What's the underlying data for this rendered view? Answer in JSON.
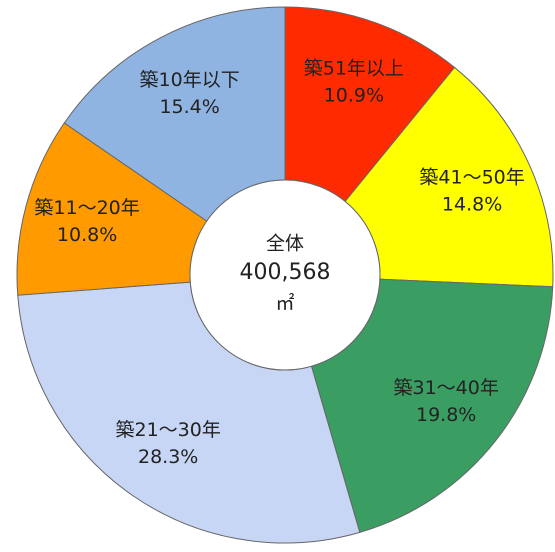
{
  "chart_data": {
    "type": "donut",
    "categories": [
      "築51年以上",
      "築41～50年",
      "築31～40年",
      "築21～30年",
      "築11～20年",
      "築10年以下"
    ],
    "values": [
      10.9,
      14.8,
      19.8,
      28.3,
      10.8,
      15.4
    ],
    "value_labels": [
      "10.9%",
      "14.8%",
      "19.8%",
      "28.3%",
      "10.8%",
      "15.4%"
    ],
    "colors": [
      "#ff2a00",
      "#ffff00",
      "#3a9e63",
      "#c8d6f6",
      "#ff9a00",
      "#8fb4e2"
    ],
    "center_text": [
      "全体",
      "400,568",
      "㎡"
    ]
  }
}
